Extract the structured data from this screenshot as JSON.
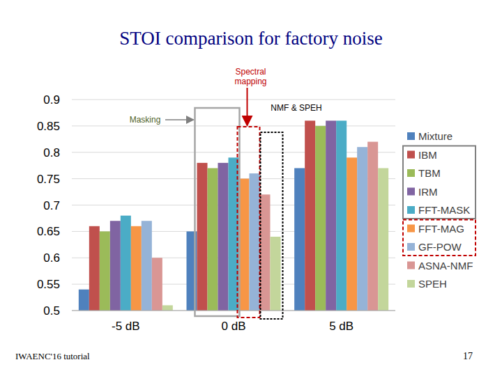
{
  "chart_data": {
    "type": "bar",
    "title": "STOI comparison for factory noise",
    "categories": [
      "-5 dB",
      "0 dB",
      "5 dB"
    ],
    "series": [
      {
        "name": "Mixture",
        "color": "#4f81bd",
        "values": [
          0.54,
          0.65,
          0.77
        ]
      },
      {
        "name": "IBM",
        "color": "#c0504d",
        "values": [
          0.66,
          0.78,
          0.86
        ]
      },
      {
        "name": "TBM",
        "color": "#9bbb59",
        "values": [
          0.65,
          0.77,
          0.85
        ]
      },
      {
        "name": "IRM",
        "color": "#8064a2",
        "values": [
          0.67,
          0.78,
          0.86
        ]
      },
      {
        "name": "FFT-MASK",
        "color": "#4bacc6",
        "values": [
          0.68,
          0.79,
          0.86
        ]
      },
      {
        "name": "FFT-MAG",
        "color": "#f79646",
        "values": [
          0.66,
          0.75,
          0.79
        ]
      },
      {
        "name": "GF-POW",
        "color": "#95b3d7",
        "values": [
          0.67,
          0.76,
          0.81
        ]
      },
      {
        "name": "ASNA-NMF",
        "color": "#d99694",
        "values": [
          0.6,
          0.72,
          0.82
        ]
      },
      {
        "name": "SPEH",
        "color": "#c3d69b",
        "values": [
          0.51,
          0.64,
          0.77
        ]
      }
    ],
    "ylim": [
      0.5,
      0.9
    ],
    "yticks": [
      0.5,
      0.55,
      0.6,
      0.65,
      0.7,
      0.75,
      0.8,
      0.85,
      0.9
    ],
    "grid": true,
    "legend": "right",
    "annotations": [
      "Spectral mapping",
      "Masking",
      "NMF & SPEH"
    ],
    "footer": [
      "IWAENC'16 tutorial",
      "17"
    ]
  }
}
